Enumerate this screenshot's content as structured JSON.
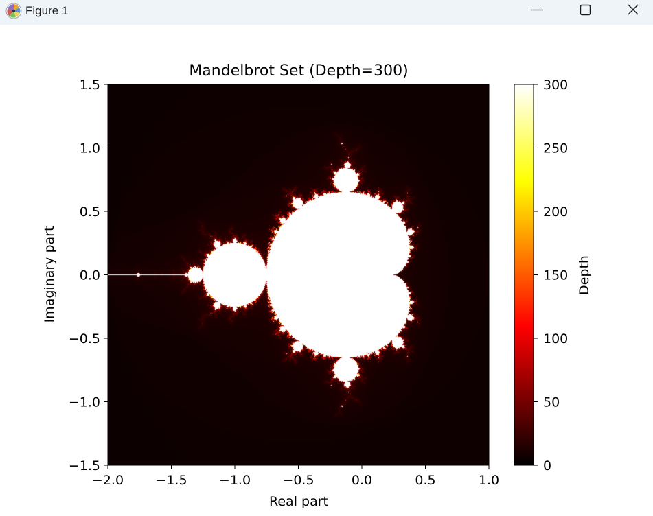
{
  "window": {
    "title": "Figure 1",
    "app_icon": "matplotlib-logo-icon",
    "controls": {
      "minimize_icon": "minimize-icon",
      "maximize_icon": "maximize-icon",
      "close_icon": "close-icon"
    },
    "titlebar_color": "#eff4f9"
  },
  "chart_data": {
    "type": "heatmap",
    "title": "Mandelbrot Set (Depth=300)",
    "xlabel": "Real part",
    "ylabel": "Imaginary part",
    "xlim": [
      -2.0,
      1.0
    ],
    "ylim": [
      -1.5,
      1.5
    ],
    "x_ticks": [
      -2.0,
      -1.5,
      -1.0,
      -0.5,
      0.0,
      0.5,
      1.0
    ],
    "x_tick_labels": [
      "−2.0",
      "−1.5",
      "−1.0",
      "−0.5",
      "0.0",
      "0.5",
      "1.0"
    ],
    "y_ticks": [
      1.5,
      1.0,
      0.5,
      0.0,
      -0.5,
      -1.0,
      -1.5
    ],
    "y_tick_labels": [
      "1.5",
      "1.0",
      "0.5",
      "0.0",
      "−0.5",
      "−1.0",
      "−1.5"
    ],
    "max_depth": 300,
    "colormap": "hot",
    "colorbar": {
      "label": "Depth",
      "range": [
        0,
        300
      ],
      "ticks": [
        300,
        250,
        200,
        150,
        100,
        50,
        0
      ],
      "tick_labels": [
        "300",
        "250",
        "200",
        "150",
        "100",
        "50",
        "0"
      ],
      "stops": [
        "#0a0000",
        "#ff0000",
        "#ffff00",
        "#ffffff"
      ]
    },
    "grid": false
  }
}
